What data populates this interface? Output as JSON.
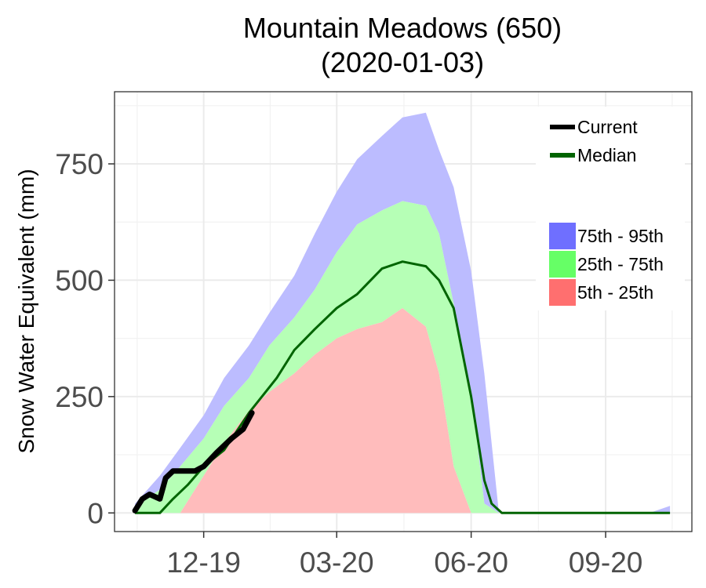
{
  "chart_data": {
    "type": "area",
    "title": "Mountain Meadows (650)",
    "subtitle": "(2020-01-03)",
    "ylabel": "Snow Water Equivalent (mm)",
    "xlabel": "",
    "ylim": [
      -40,
      905
    ],
    "y_ticks": [
      0,
      250,
      500,
      750
    ],
    "y_tick_labels": [
      "0",
      "250",
      "500",
      "750"
    ],
    "xlim": [
      "2019-10-01",
      "2020-10-30"
    ],
    "x_ticks": [
      "2019-12-01",
      "2020-03-01",
      "2020-06-01",
      "2020-09-01"
    ],
    "x_tick_labels": [
      "12-19",
      "03-20",
      "06-20",
      "09-20"
    ],
    "grid": true,
    "legend_position": "top-right",
    "legend": {
      "lines": [
        {
          "label": "Current",
          "color": "#000000"
        },
        {
          "label": "Median",
          "color": "#006400"
        }
      ],
      "bands": [
        {
          "label": "75th - 95th",
          "color": "#6f6fff"
        },
        {
          "label": "25th - 75th",
          "color": "#66ff66"
        },
        {
          "label": "5th - 25th",
          "color": "#ff6f6f"
        }
      ]
    },
    "band_colors": {
      "p75_p95": "#bcbcff",
      "p25_p75": "#b6ffb6",
      "p5_p25": "#ffbcbc"
    },
    "x": [
      "2019-10-15",
      "2019-11-01",
      "2019-11-15",
      "2019-12-01",
      "2019-12-15",
      "2020-01-01",
      "2020-01-15",
      "2020-02-01",
      "2020-02-15",
      "2020-03-01",
      "2020-03-15",
      "2020-04-01",
      "2020-04-15",
      "2020-05-01",
      "2020-05-10",
      "2020-05-20",
      "2020-06-01",
      "2020-06-10",
      "2020-06-20",
      "2020-07-01",
      "2020-07-15",
      "2020-08-01",
      "2020-09-01",
      "2020-10-01",
      "2020-10-15"
    ],
    "series": [
      {
        "name": "5th - 25th",
        "lower": [
          0,
          0,
          0,
          0,
          0,
          0,
          0,
          0,
          0,
          0,
          0,
          0,
          0,
          0,
          0,
          0,
          0,
          0,
          0,
          0,
          0,
          0,
          0,
          0,
          0
        ],
        "upper": [
          0,
          0,
          0,
          80,
          150,
          220,
          260,
          300,
          340,
          375,
          395,
          410,
          440,
          400,
          300,
          100,
          0,
          0,
          0,
          0,
          0,
          0,
          0,
          0,
          0
        ]
      },
      {
        "name": "25th - 75th",
        "lower": [
          0,
          0,
          0,
          80,
          150,
          220,
          260,
          300,
          340,
          375,
          395,
          410,
          440,
          400,
          300,
          100,
          0,
          0,
          0,
          0,
          0,
          0,
          0,
          0,
          0
        ],
        "upper": [
          15,
          50,
          100,
          160,
          230,
          290,
          360,
          420,
          480,
          560,
          620,
          650,
          670,
          660,
          600,
          450,
          260,
          20,
          0,
          0,
          0,
          0,
          0,
          0,
          0
        ]
      },
      {
        "name": "75th - 95th",
        "lower": [
          15,
          50,
          100,
          160,
          230,
          290,
          360,
          420,
          480,
          560,
          620,
          650,
          670,
          660,
          600,
          450,
          260,
          20,
          0,
          0,
          0,
          0,
          0,
          0,
          0
        ],
        "upper": [
          20,
          80,
          140,
          210,
          290,
          360,
          430,
          510,
          600,
          690,
          760,
          810,
          850,
          860,
          780,
          700,
          520,
          300,
          0,
          0,
          0,
          0,
          0,
          0,
          15
        ]
      },
      {
        "name": "Median",
        "x": [
          "2019-10-15",
          "2019-11-01",
          "2019-11-10",
          "2019-11-20",
          "2019-12-01",
          "2019-12-15",
          "2020-01-01",
          "2020-01-20",
          "2020-02-01",
          "2020-02-15",
          "2020-03-01",
          "2020-03-15",
          "2020-04-01",
          "2020-04-15",
          "2020-05-01",
          "2020-05-10",
          "2020-05-20",
          "2020-06-01",
          "2020-06-10",
          "2020-06-15",
          "2020-06-22",
          "2020-07-15",
          "2020-08-15",
          "2020-09-15",
          "2020-10-15"
        ],
        "values": [
          0,
          0,
          30,
          60,
          100,
          135,
          215,
          290,
          350,
          395,
          440,
          470,
          525,
          540,
          530,
          500,
          440,
          250,
          70,
          20,
          0,
          0,
          0,
          0,
          0
        ]
      },
      {
        "name": "Current",
        "x": [
          "2019-10-15",
          "2019-10-20",
          "2019-10-25",
          "2019-11-01",
          "2019-11-05",
          "2019-11-10",
          "2019-11-15",
          "2019-11-25",
          "2019-12-01",
          "2019-12-10",
          "2019-12-20",
          "2019-12-28",
          "2020-01-03"
        ],
        "values": [
          5,
          30,
          40,
          30,
          75,
          90,
          90,
          90,
          100,
          130,
          160,
          180,
          215
        ]
      }
    ]
  }
}
